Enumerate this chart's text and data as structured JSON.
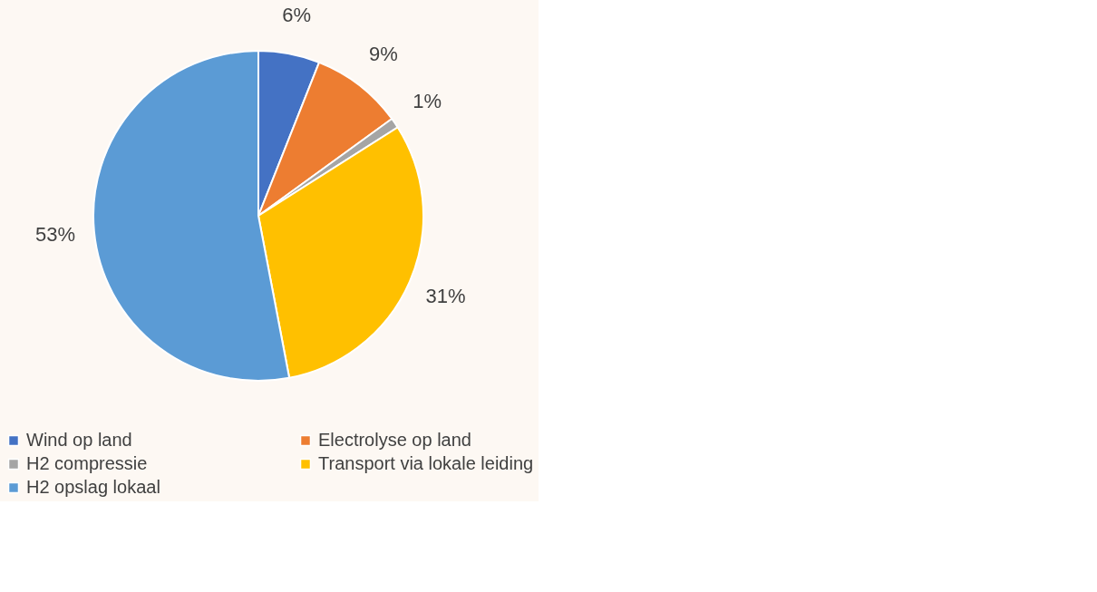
{
  "chart_data": {
    "type": "pie",
    "categories": [
      "Wind op land",
      "Electrolyse op land",
      "H2 compressie",
      "Transport via lokale leiding",
      "H2 opslag lokaal"
    ],
    "values": [
      6,
      9,
      1,
      31,
      53
    ],
    "colors": [
      "#4472c4",
      "#ed7d31",
      "#a5a5a5",
      "#ffc000",
      "#5b9bd5"
    ],
    "value_labels": [
      "6%",
      "9%",
      "1%",
      "31%",
      "53%"
    ],
    "legend": "bottom"
  }
}
